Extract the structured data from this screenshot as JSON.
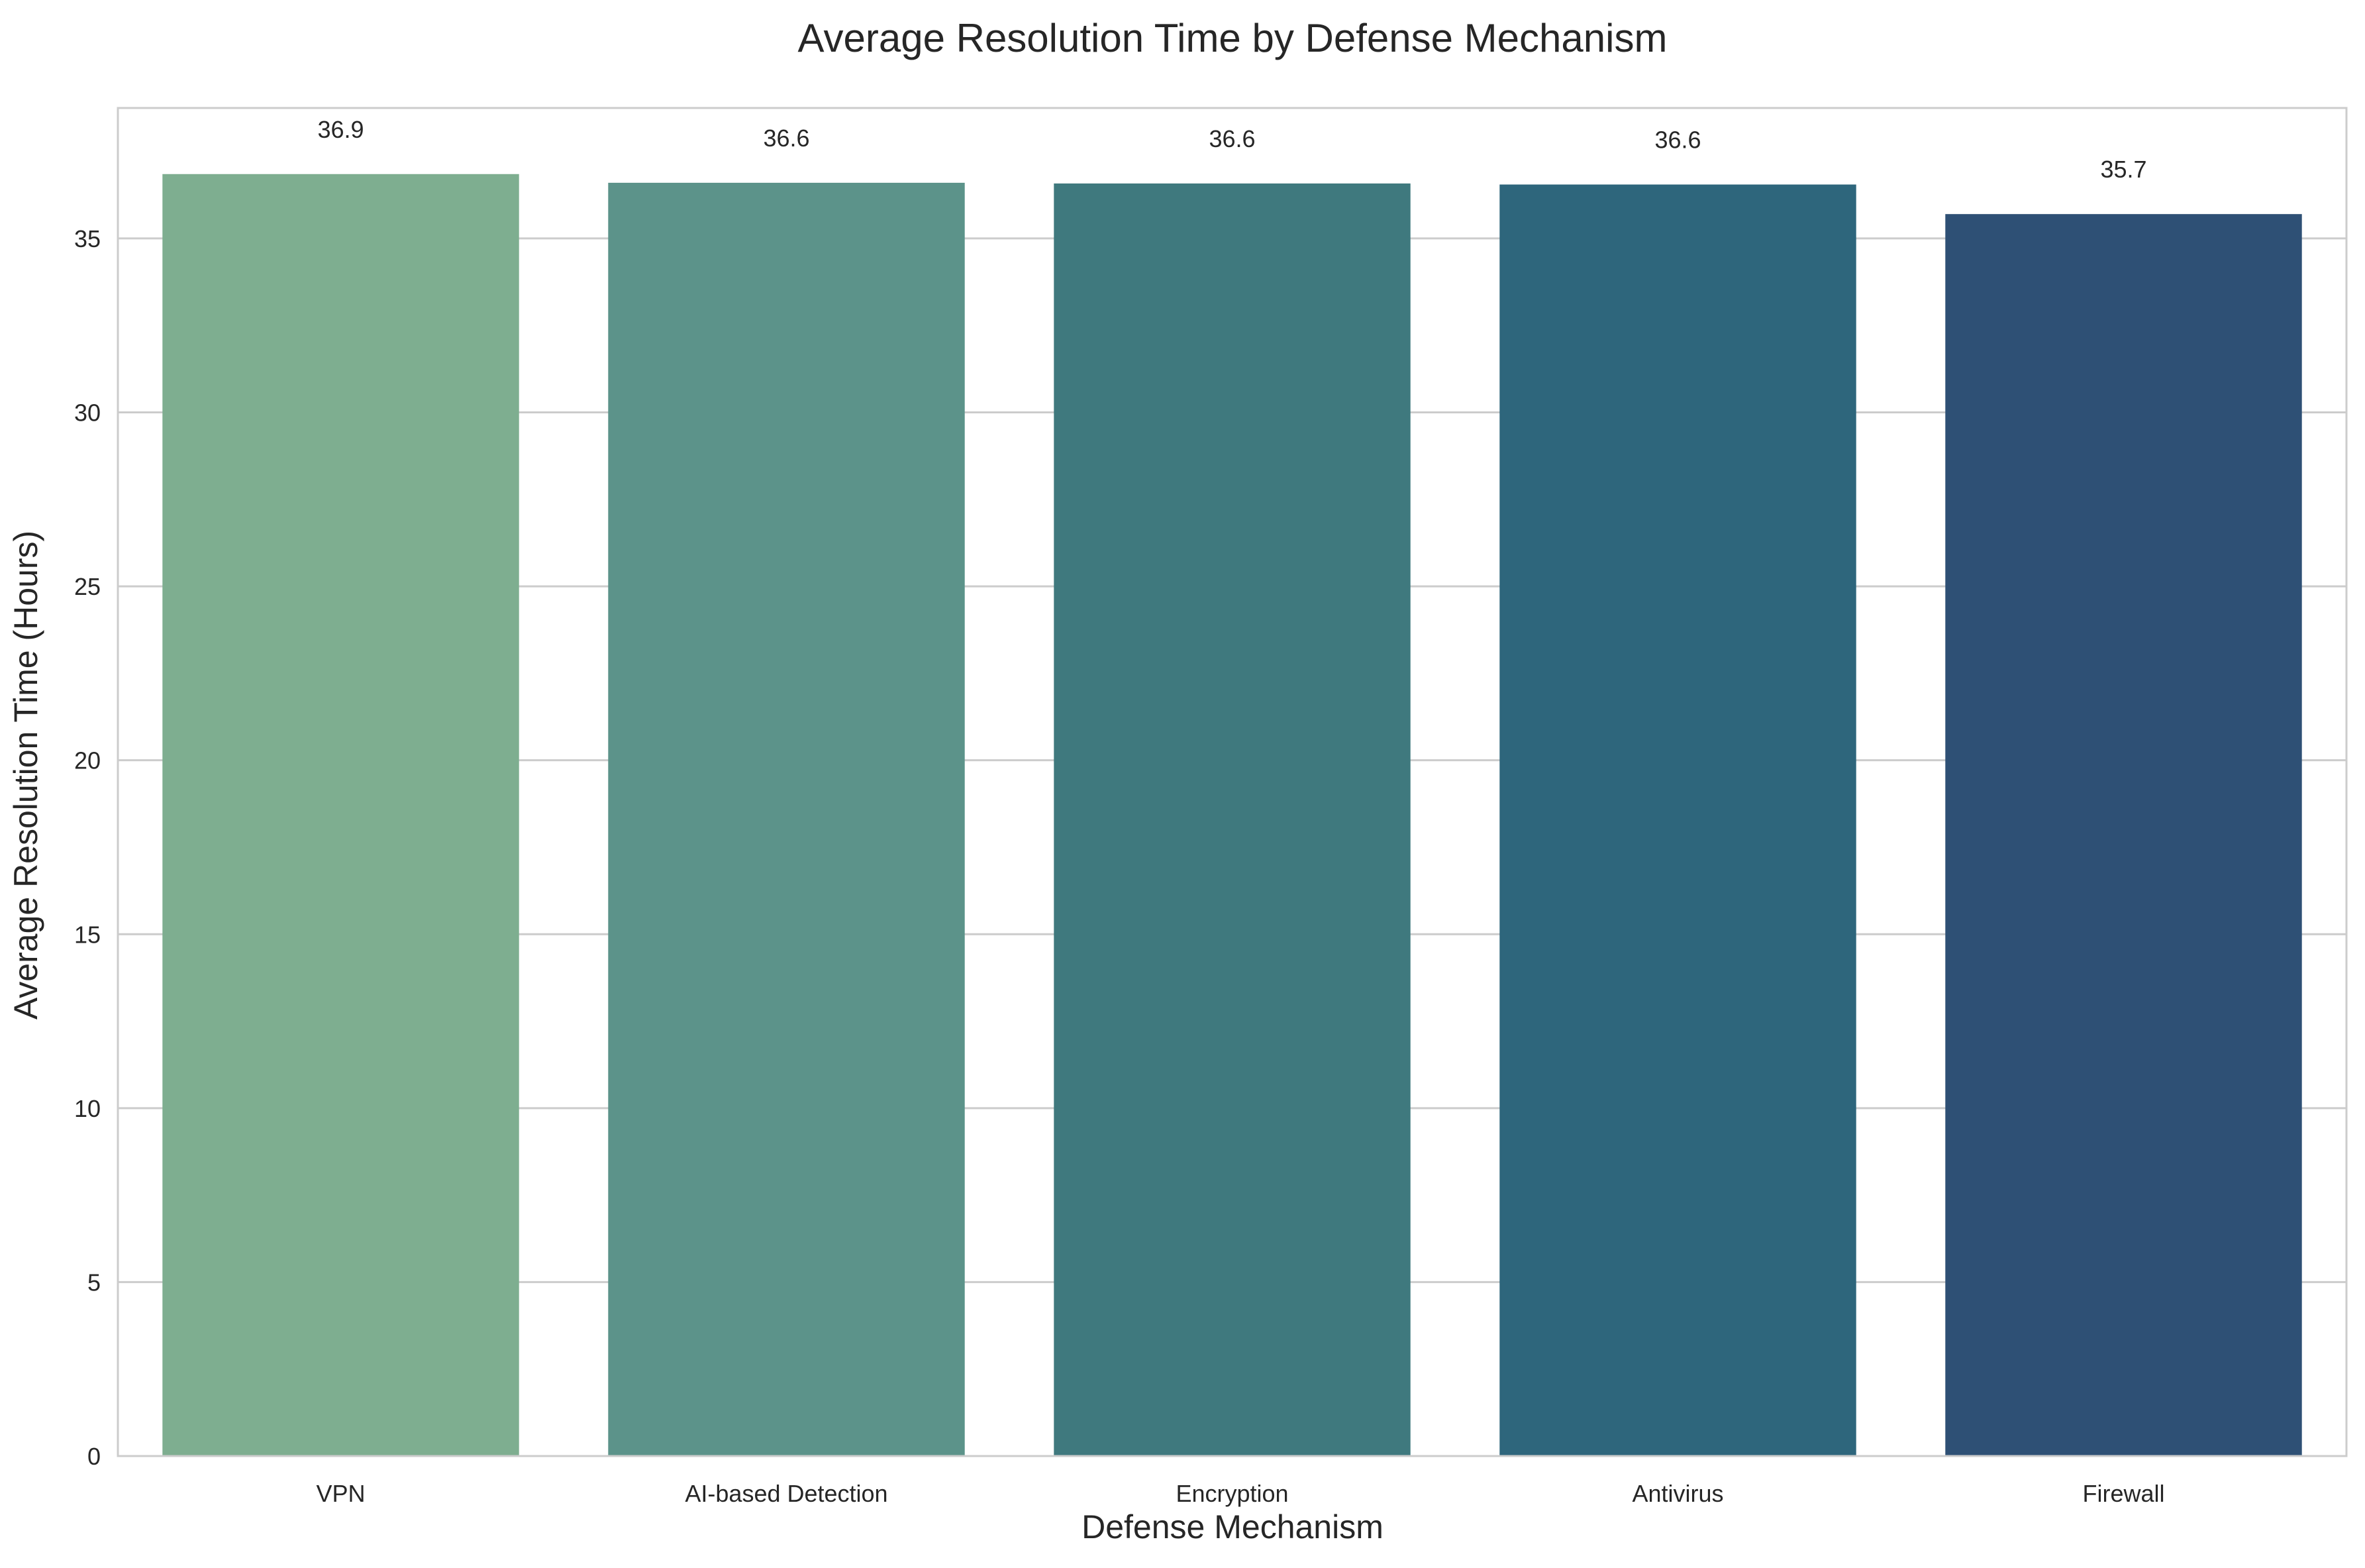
{
  "chart_data": {
    "type": "bar",
    "title": "Average Resolution Time by Defense Mechanism",
    "xlabel": "Defense Mechanism",
    "ylabel": "Average Resolution Time (Hours)",
    "categories": [
      "VPN",
      "AI-based Detection",
      "Encryption",
      "Antivirus",
      "Firewall"
    ],
    "values": [
      36.85,
      36.6,
      36.58,
      36.55,
      35.7
    ],
    "data_labels": [
      "36.9",
      "36.6",
      "36.6",
      "36.6",
      "35.7"
    ],
    "colors": [
      "#7eae90",
      "#5c938a",
      "#3f797e",
      "#2e667c",
      "#2e5075"
    ],
    "ylim": [
      0,
      38.75
    ],
    "yticks": [
      0,
      5,
      10,
      15,
      20,
      25,
      30,
      35
    ],
    "grid": "horizontal",
    "legend": "none"
  }
}
